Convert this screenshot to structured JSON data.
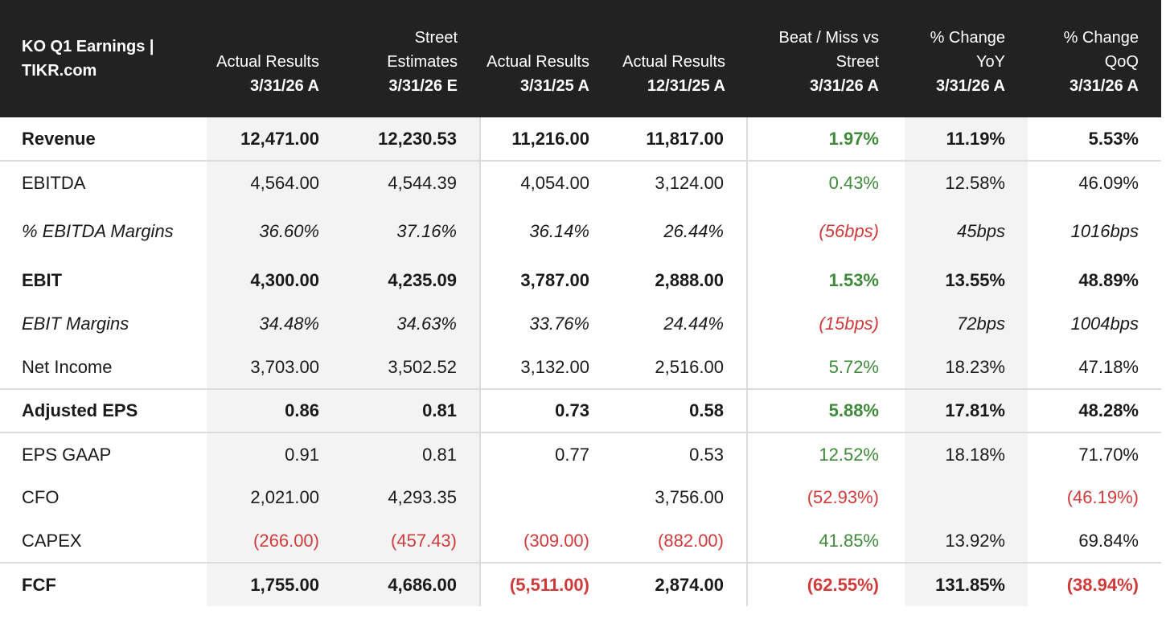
{
  "header": {
    "title": "KO Q1 Earnings | TIKR.com",
    "columns": [
      {
        "label": "Actual Results",
        "date": "3/31/26 A"
      },
      {
        "label": "Street Estimates",
        "date": "3/31/26 E"
      },
      {
        "label": "Actual Results",
        "date": "3/31/25 A"
      },
      {
        "label": "Actual Results",
        "date": "12/31/25 A"
      },
      {
        "label": "Beat / Miss vs Street",
        "date": "3/31/26 A"
      },
      {
        "label": "% Change YoY",
        "date": "3/31/26 A"
      },
      {
        "label": "% Change QoQ",
        "date": "3/31/26 A"
      }
    ]
  },
  "colors": {
    "header_bg": "#222222",
    "positive": "#3f8a3a",
    "negative": "#cf3b3b",
    "shade": "#f3f3f3"
  },
  "rows": [
    {
      "label": "Revenue",
      "v": [
        "12,471.00",
        "12,230.53",
        "11,216.00",
        "11,817.00",
        "1.97%",
        "11.19%",
        "5.53%"
      ]
    },
    {
      "label": "EBITDA",
      "v": [
        "4,564.00",
        "4,544.39",
        "4,054.00",
        "3,124.00",
        "0.43%",
        "12.58%",
        "46.09%"
      ]
    },
    {
      "label": "% EBITDA Margins",
      "v": [
        "36.60%",
        "37.16%",
        "36.14%",
        "26.44%",
        "(56bps)",
        "45bps",
        "1016bps"
      ]
    },
    {
      "label": "EBIT",
      "v": [
        "4,300.00",
        "4,235.09",
        "3,787.00",
        "2,888.00",
        "1.53%",
        "13.55%",
        "48.89%"
      ]
    },
    {
      "label": "EBIT Margins",
      "v": [
        "34.48%",
        "34.63%",
        "33.76%",
        "24.44%",
        "(15bps)",
        "72bps",
        "1004bps"
      ]
    },
    {
      "label": "Net Income",
      "v": [
        "3,703.00",
        "3,502.52",
        "3,132.00",
        "2,516.00",
        "5.72%",
        "18.23%",
        "47.18%"
      ]
    },
    {
      "label": "Adjusted EPS",
      "v": [
        "0.86",
        "0.81",
        "0.73",
        "0.58",
        "5.88%",
        "17.81%",
        "48.28%"
      ]
    },
    {
      "label": "EPS GAAP",
      "v": [
        "0.91",
        "0.81",
        "0.77",
        "0.53",
        "12.52%",
        "18.18%",
        "71.70%"
      ]
    },
    {
      "label": "CFO",
      "v": [
        "2,021.00",
        "4,293.35",
        "",
        "3,756.00",
        "(52.93%)",
        "",
        "(46.19%)"
      ]
    },
    {
      "label": "CAPEX",
      "v": [
        "(266.00)",
        "(457.43)",
        "(309.00)",
        "(882.00)",
        "41.85%",
        "13.92%",
        "69.84%"
      ]
    },
    {
      "label": "FCF",
      "v": [
        "1,755.00",
        "4,686.00",
        "(5,511.00)",
        "2,874.00",
        "(62.55%)",
        "131.85%",
        "(38.94%)"
      ]
    }
  ]
}
